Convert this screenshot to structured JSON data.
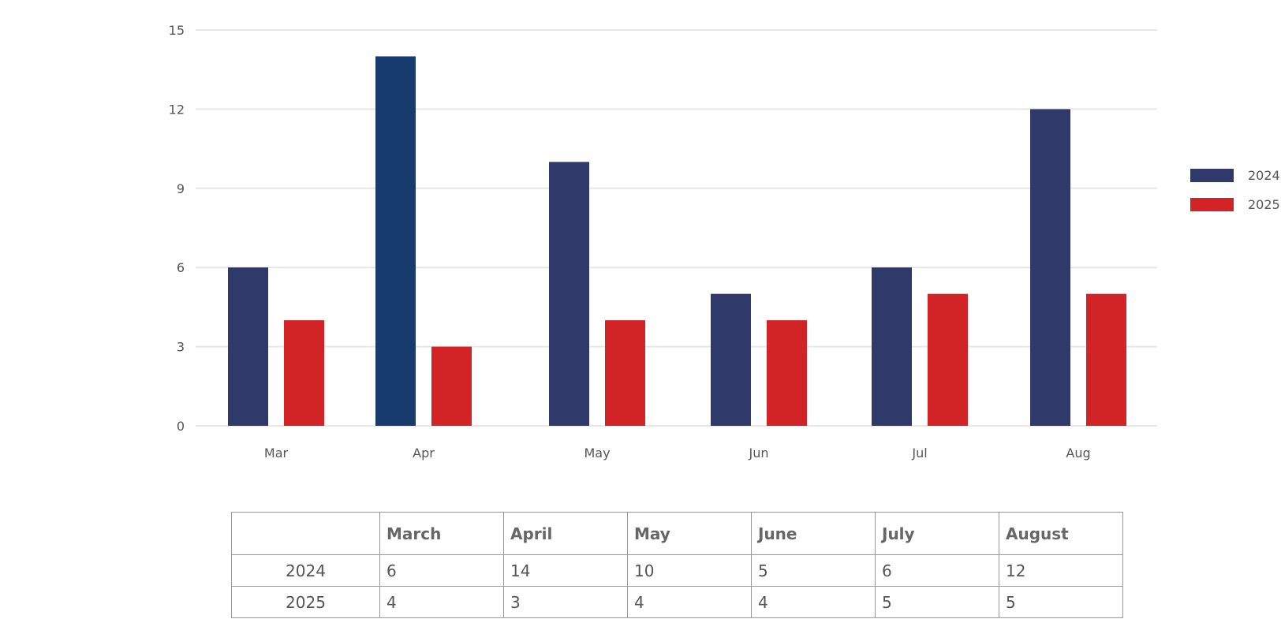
{
  "colors": {
    "series_2024": "#2f3a6b",
    "series_2024_highlight": "#183b6e",
    "series_2025": "#d22427",
    "grid": "#e6e6e6",
    "text": "#555555"
  },
  "chart_data": {
    "type": "bar",
    "categories": [
      "Mar",
      "Apr",
      "May",
      "Jun",
      "Jul",
      "Aug"
    ],
    "series": [
      {
        "name": "2024",
        "values": [
          6,
          14,
          10,
          5,
          6,
          12
        ]
      },
      {
        "name": "2025",
        "values": [
          4,
          3,
          4,
          4,
          5,
          5
        ]
      }
    ],
    "ylim": [
      0,
      15
    ],
    "yticks": [
      0,
      3,
      6,
      9,
      12,
      15
    ],
    "grid": true,
    "legend": "right"
  },
  "table": {
    "header": [
      "",
      "March",
      "April",
      "May",
      "June",
      "July",
      "August"
    ],
    "rows": [
      {
        "label": "2024",
        "values": [
          "6",
          "14",
          "10",
          "5",
          "6",
          "12"
        ]
      },
      {
        "label": "2025",
        "values": [
          "4",
          "3",
          "4",
          "4",
          "5",
          "5"
        ]
      }
    ]
  }
}
